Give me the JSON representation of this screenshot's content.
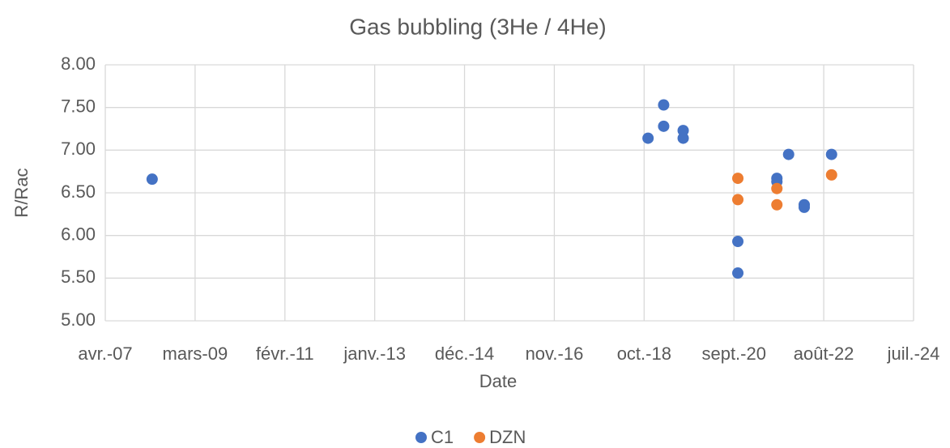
{
  "chart_data": {
    "type": "scatter",
    "title": "Gas bubbling (3He / 4He)",
    "x_label": "Date",
    "y_label": "R/Rac",
    "series": [
      {
        "name": "C1",
        "color": "#4472c4",
        "x": [
          "2008-04",
          "2018-11",
          "2019-03",
          "2019-03",
          "2019-08",
          "2019-08",
          "2020-10",
          "2020-10",
          "2021-08",
          "2021-08",
          "2021-11",
          "2022-03",
          "2022-03",
          "2022-10"
        ],
        "values": [
          6.66,
          7.14,
          7.53,
          7.28,
          7.23,
          7.14,
          5.93,
          5.56,
          6.67,
          6.63,
          6.95,
          6.36,
          6.33,
          6.95
        ]
      },
      {
        "name": "DZN",
        "color": "#ed7d31",
        "x": [
          "2020-10",
          "2020-10",
          "2021-08",
          "2021-08",
          "2022-10"
        ],
        "values": [
          6.67,
          6.42,
          6.55,
          6.36,
          6.71
        ]
      }
    ],
    "xlim": [
      "2007-04",
      "2024-07"
    ],
    "xticks": [
      {
        "value": "2007-04",
        "label": "avr.-07"
      },
      {
        "value": "2009-03",
        "label": "mars-09"
      },
      {
        "value": "2011-02",
        "label": "févr.-11"
      },
      {
        "value": "2013-01",
        "label": "janv.-13"
      },
      {
        "value": "2014-12",
        "label": "déc.-14"
      },
      {
        "value": "2016-11",
        "label": "nov.-16"
      },
      {
        "value": "2018-10",
        "label": "oct.-18"
      },
      {
        "value": "2020-09",
        "label": "sept.-20"
      },
      {
        "value": "2022-08",
        "label": "août-22"
      },
      {
        "value": "2024-07",
        "label": "juil.-24"
      }
    ],
    "ylim": [
      5,
      8
    ],
    "yticks": [
      {
        "value": 5,
        "label": "5.00"
      },
      {
        "value": 5.5,
        "label": "5.50"
      },
      {
        "value": 6,
        "label": "6.00"
      },
      {
        "value": 6.5,
        "label": "6.50"
      },
      {
        "value": 7,
        "label": "7.00"
      },
      {
        "value": 7.5,
        "label": "7.50"
      },
      {
        "value": 8,
        "label": "8.00"
      }
    ],
    "grid": true,
    "legend": "bottom"
  }
}
